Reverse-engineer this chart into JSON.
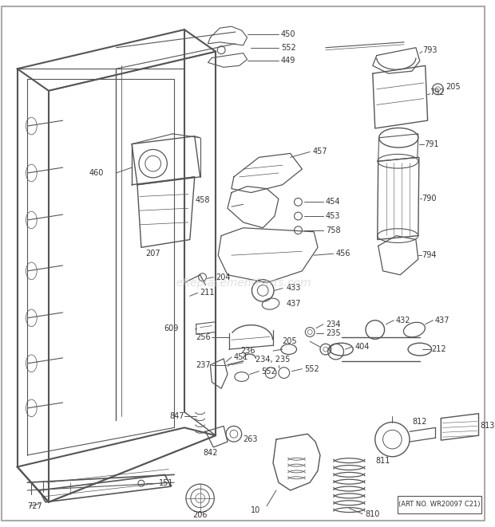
{
  "background_color": "#ffffff",
  "watermark": "eReplacementParts.com",
  "art_no": "(ART NO. WR20097 C21)",
  "fig_width": 6.2,
  "fig_height": 6.61,
  "dpi": 100,
  "line_color": "#555555",
  "text_color": "#333333",
  "watermark_color": "#cccccc",
  "label_fontsize": 7.0,
  "watermark_fontsize": 10,
  "border_color": "#999999"
}
